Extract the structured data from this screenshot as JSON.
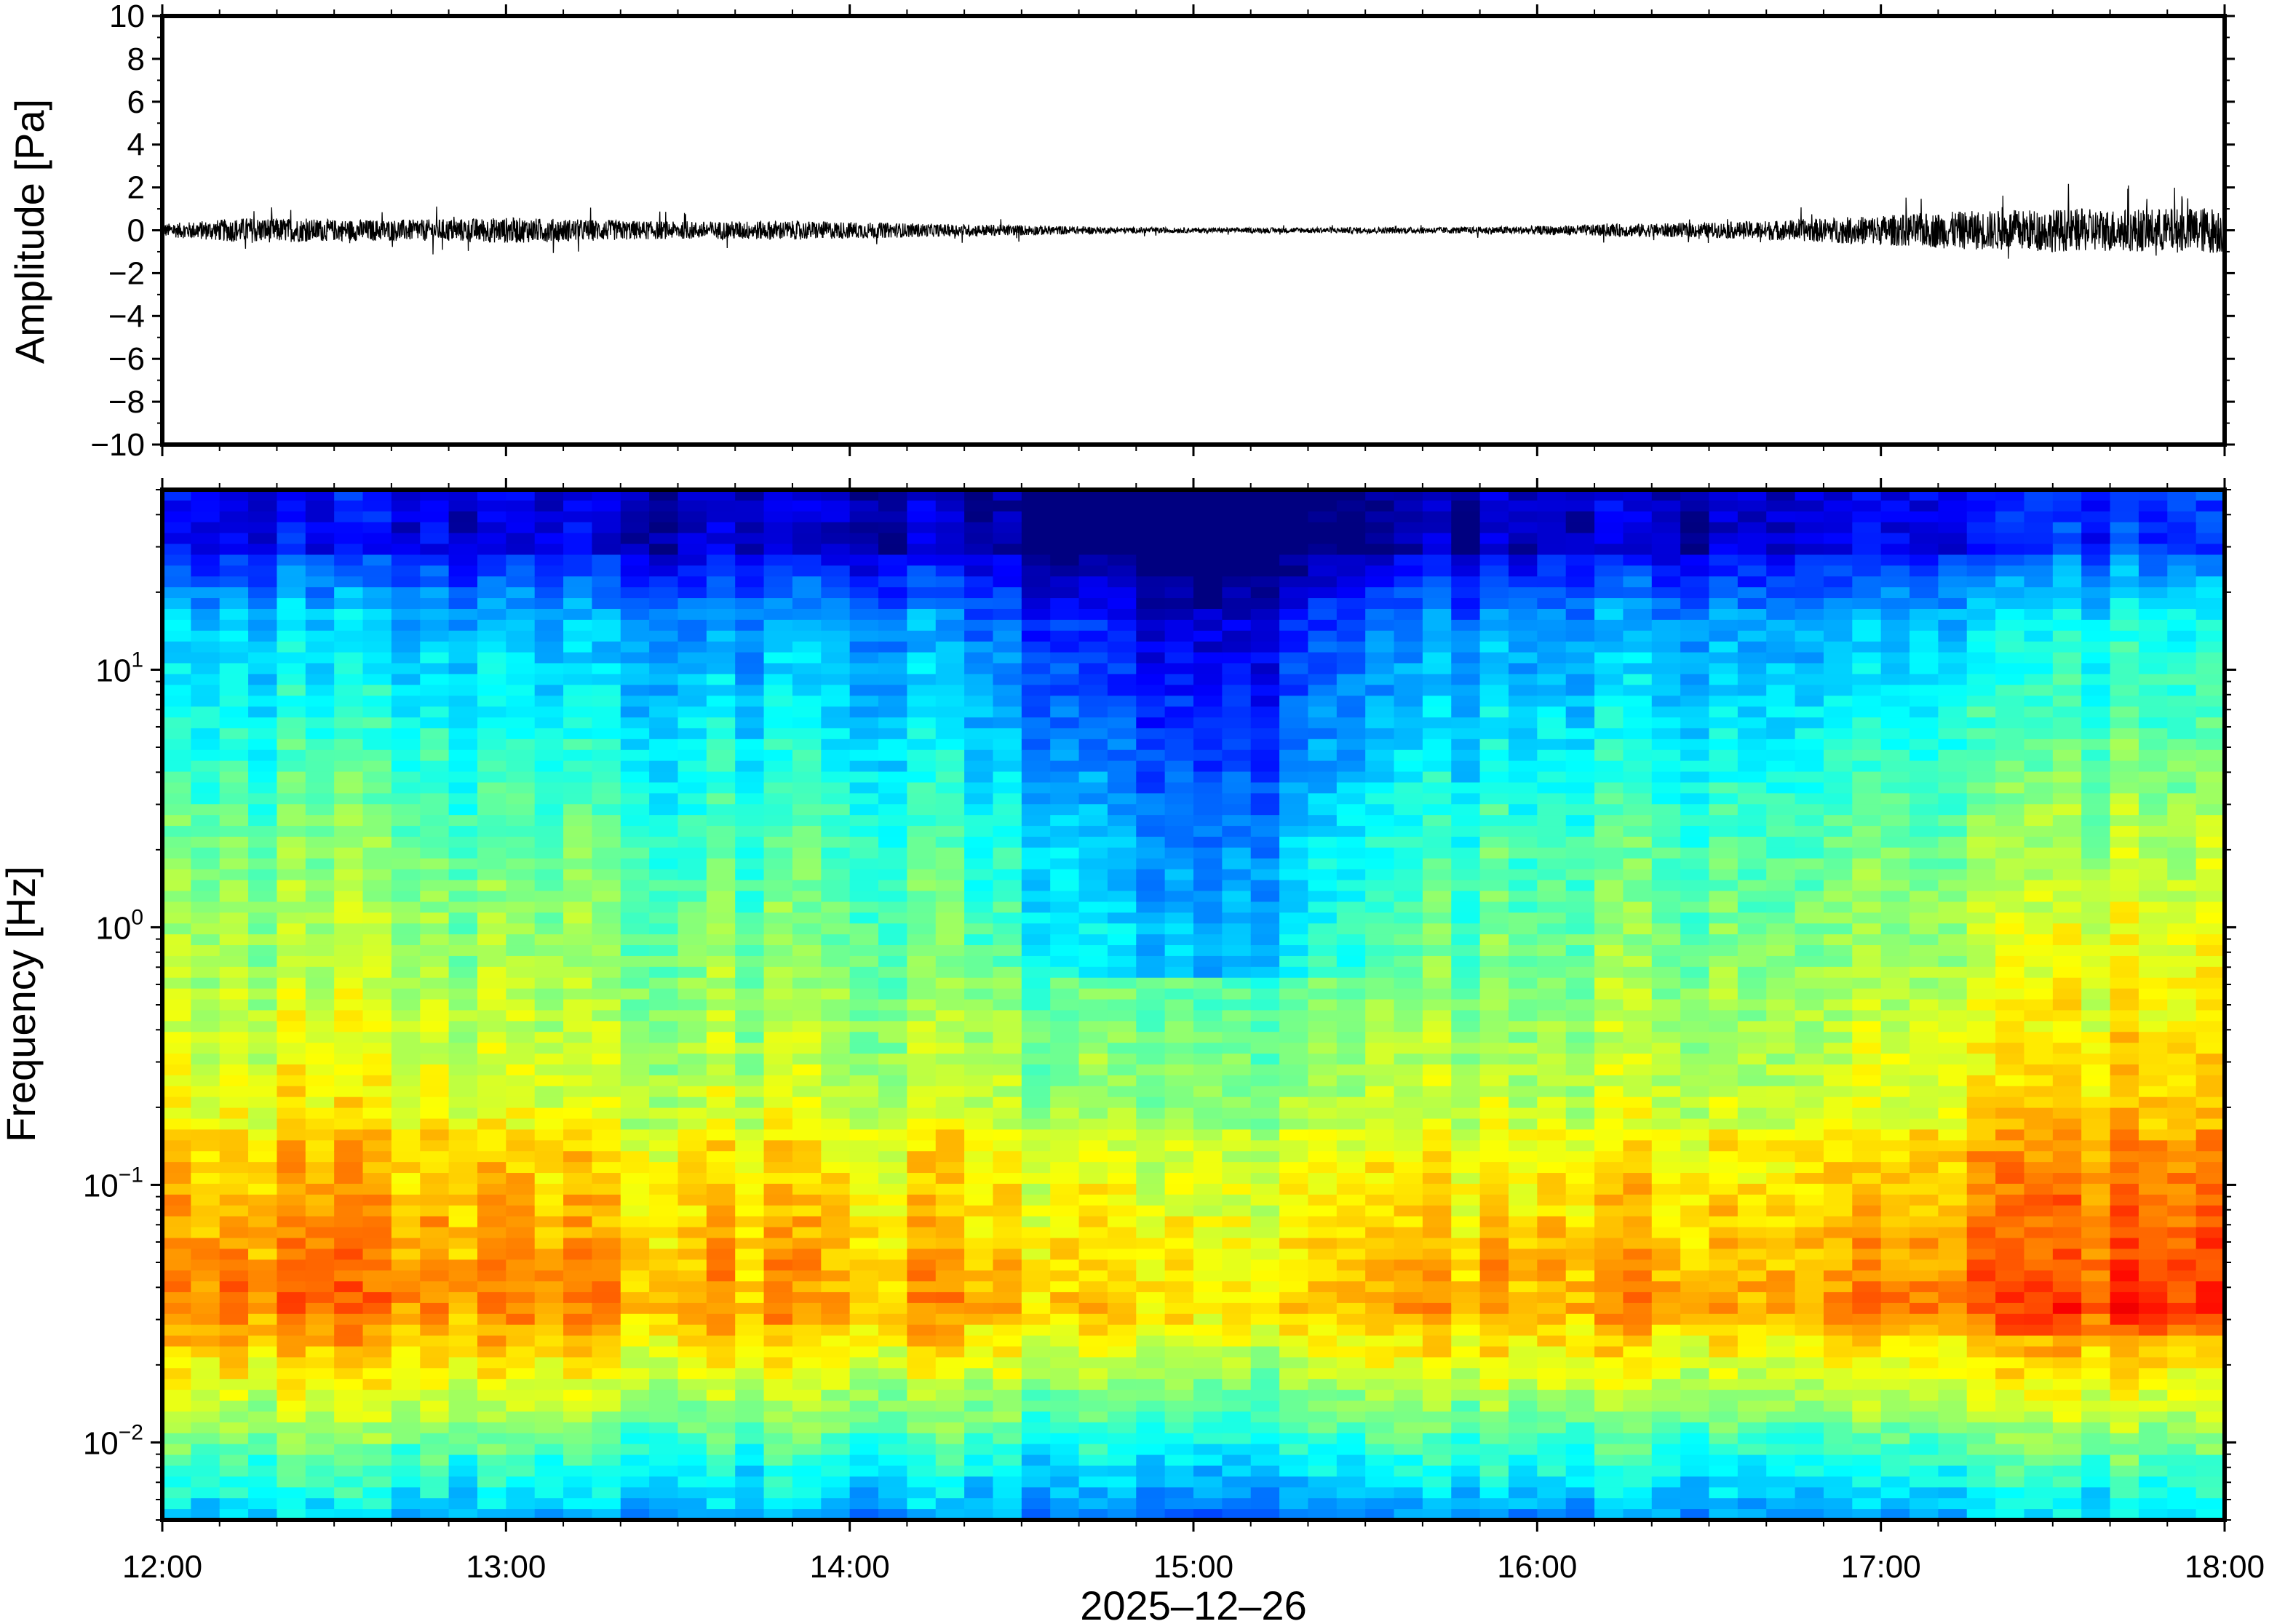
{
  "chart_data": [
    {
      "type": "line",
      "panel": "waveform",
      "title": "",
      "xlabel": "",
      "ylabel": "Amplitude [Pa]",
      "ylim": [
        -10,
        10
      ],
      "yticks": [
        10,
        8,
        6,
        4,
        2,
        0,
        -2,
        -4,
        -6,
        -8,
        -10
      ],
      "ytick_labels": [
        "10",
        "8",
        "6",
        "4",
        "2",
        "0",
        "−2",
        "−4",
        "−6",
        "−8",
        "−10"
      ],
      "xlim": [
        "12:00",
        "18:00"
      ],
      "grid": false,
      "series": [
        {
          "color": "#000000",
          "time_hours": [
            12.0,
            12.25,
            12.5,
            12.75,
            13.0,
            13.25,
            13.5,
            13.75,
            14.0,
            14.25,
            14.5,
            14.75,
            15.0,
            15.25,
            15.5,
            15.75,
            16.0,
            16.25,
            16.5,
            16.75,
            17.0,
            17.25,
            17.5,
            17.75,
            18.0
          ],
          "envelope_pa": [
            0.3,
            0.6,
            0.5,
            0.5,
            0.6,
            0.5,
            0.4,
            0.45,
            0.4,
            0.3,
            0.25,
            0.15,
            0.12,
            0.12,
            0.15,
            0.15,
            0.2,
            0.3,
            0.35,
            0.5,
            0.7,
            0.9,
            1.0,
            1.0,
            1.1
          ]
        }
      ]
    },
    {
      "type": "heatmap",
      "panel": "spectrogram",
      "title": "",
      "xlabel": "2025‒12‒26",
      "ylabel": "Frequency [Hz]",
      "yscale": "log",
      "ylim": [
        0.005,
        50
      ],
      "ytick_labels": [
        {
          "base": "10",
          "exp": "1",
          "value": 10
        },
        {
          "base": "10",
          "exp": "0",
          "value": 1
        },
        {
          "base": "10",
          "exp": "−1",
          "value": 0.1
        },
        {
          "base": "10",
          "exp": "−2",
          "value": 0.01
        }
      ],
      "x_tick_labels": [
        "12:00",
        "13:00",
        "14:00",
        "15:00",
        "16:00",
        "17:00",
        "18:00"
      ],
      "colormap": "jet",
      "colorbar": false
    }
  ]
}
